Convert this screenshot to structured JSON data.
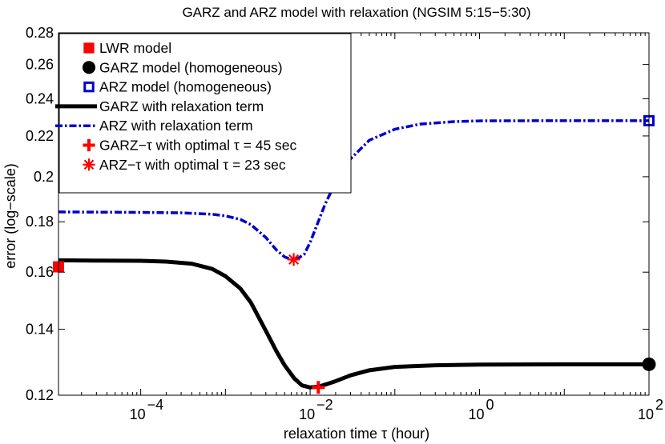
{
  "chart_data": {
    "type": "line",
    "title": "GARZ and ARZ model with relaxation (NGSIM 5:15−5:30)",
    "xlabel": "relaxation time τ (hour)",
    "ylabel": "error (log−scale)",
    "xscale": "log",
    "yscale": "log",
    "xlim": [
      1.07e-05,
      100
    ],
    "ylim": [
      0.12,
      0.28
    ],
    "x_ticks": [
      {
        "value": 0.0001,
        "base": "10",
        "exp": "−4"
      },
      {
        "value": 0.01,
        "base": "10",
        "exp": "−2"
      },
      {
        "value": 1,
        "base": "10",
        "exp": "0"
      },
      {
        "value": 100,
        "base": "10",
        "exp": "2"
      }
    ],
    "y_ticks": [
      {
        "value": 0.12,
        "label": "0.12"
      },
      {
        "value": 0.14,
        "label": "0.14"
      },
      {
        "value": 0.16,
        "label": "0.16"
      },
      {
        "value": 0.18,
        "label": "0.18"
      },
      {
        "value": 0.2,
        "label": "0.2"
      },
      {
        "value": 0.22,
        "label": "0.22"
      },
      {
        "value": 0.24,
        "label": "0.24"
      },
      {
        "value": 0.26,
        "label": "0.26"
      },
      {
        "value": 0.28,
        "label": "0.28"
      }
    ],
    "grid": false,
    "legend_position": "top-left",
    "colors": {
      "red": "#ff0000",
      "black": "#000000",
      "blue": "#0000cc"
    },
    "series": [
      {
        "name": "GARZ with relaxation term",
        "style": "solid-black-thick",
        "x": [
          1.07e-05,
          3e-05,
          0.0001,
          0.0002,
          0.0004,
          0.0007,
          0.001,
          0.0015,
          0.002,
          0.003,
          0.004,
          0.005,
          0.0065,
          0.008,
          0.01,
          0.0125,
          0.016,
          0.02,
          0.03,
          0.05,
          0.1,
          0.3,
          1,
          10,
          100
        ],
        "y": [
          0.1645,
          0.1644,
          0.1643,
          0.164,
          0.1632,
          0.1612,
          0.1585,
          0.154,
          0.149,
          0.1395,
          0.133,
          0.1287,
          0.1248,
          0.1228,
          0.1222,
          0.1224,
          0.1232,
          0.124,
          0.1257,
          0.1272,
          0.1282,
          0.1287,
          0.1289,
          0.129,
          0.129
        ]
      },
      {
        "name": "ARZ with relaxation term",
        "style": "dashdot-blue",
        "x": [
          1.07e-05,
          3e-05,
          0.0001,
          0.0003,
          0.0007,
          0.001,
          0.0015,
          0.002,
          0.003,
          0.004,
          0.005,
          0.006,
          0.007,
          0.0085,
          0.01,
          0.012,
          0.015,
          0.02,
          0.03,
          0.05,
          0.1,
          0.2,
          0.5,
          1,
          10,
          100
        ],
        "y": [
          0.1842,
          0.1841,
          0.184,
          0.1838,
          0.1832,
          0.1825,
          0.181,
          0.1788,
          0.1735,
          0.1685,
          0.1658,
          0.1648,
          0.165,
          0.1668,
          0.1715,
          0.1785,
          0.1875,
          0.1975,
          0.2085,
          0.2178,
          0.2235,
          0.2262,
          0.2275,
          0.2279,
          0.228,
          0.228
        ]
      }
    ],
    "markers": [
      {
        "name": "LWR model",
        "shape": "filled-square",
        "color": "red",
        "x": 1.07e-05,
        "y": 0.162
      },
      {
        "name": "GARZ model (homogeneous)",
        "shape": "filled-circle",
        "color": "black",
        "x": 100,
        "y": 0.129
      },
      {
        "name": "ARZ model (homogeneous)",
        "shape": "open-square",
        "color": "blue",
        "x": 100,
        "y": 0.228
      },
      {
        "name": "GARZ−τ with optimal τ = 45 sec",
        "shape": "plus",
        "color": "red",
        "x": 0.0125,
        "y": 0.1222
      },
      {
        "name": "ARZ−τ with optimal τ = 23 sec",
        "shape": "asterisk",
        "color": "red",
        "x": 0.0064,
        "y": 0.1648
      }
    ],
    "legend": [
      {
        "label": "LWR model",
        "symbol": "filled-square"
      },
      {
        "label": "GARZ model (homogeneous)",
        "symbol": "filled-circle"
      },
      {
        "label": "ARZ model (homogeneous)",
        "symbol": "open-square"
      },
      {
        "label": "GARZ with relaxation term",
        "symbol": "solid-black-thick"
      },
      {
        "label": "ARZ with relaxation term",
        "symbol": "dashdot-blue"
      },
      {
        "label": "GARZ−τ with optimal τ = 45 sec",
        "symbol": "plus"
      },
      {
        "label": "ARZ−τ with optimal τ = 23 sec",
        "symbol": "asterisk"
      }
    ]
  }
}
